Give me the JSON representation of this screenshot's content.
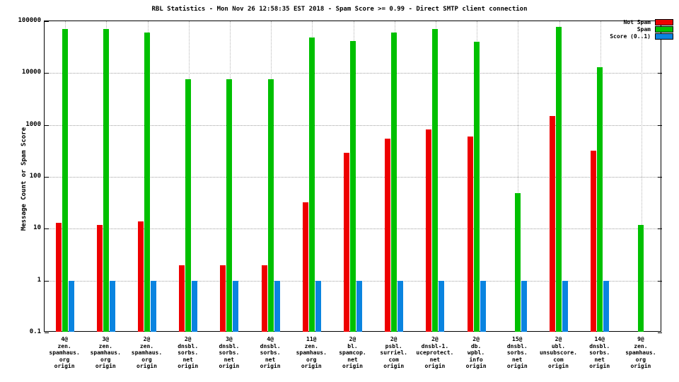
{
  "chart_data": {
    "type": "bar",
    "scale": "log",
    "title": "RBL Statistics - Mon Nov 26 12:58:35 EST 2018 - Spam Score >= 0.99 - Direct SMTP client connection",
    "ylabel": "Message Count or Spam Score",
    "ylim": [
      0.1,
      100000
    ],
    "y_ticks": [
      "0.1",
      "1",
      "10",
      "100",
      "1000",
      "10000",
      "100000"
    ],
    "y_tick_values": [
      0.1,
      1,
      10,
      100,
      1000,
      10000,
      100000
    ],
    "grid": true,
    "legend_position": "top-right",
    "categories": [
      [
        "4@",
        "zen.",
        "spamhaus.",
        "org",
        "origin"
      ],
      [
        "3@",
        "zen.",
        "spamhaus.",
        "org",
        "origin"
      ],
      [
        "2@",
        "zen.",
        "spamhaus.",
        "org",
        "origin"
      ],
      [
        "2@",
        "dnsbl.",
        "sorbs.",
        "net",
        "origin"
      ],
      [
        "3@",
        "dnsbl.",
        "sorbs.",
        "net",
        "origin"
      ],
      [
        "4@",
        "dnsbl.",
        "sorbs.",
        "net",
        "origin"
      ],
      [
        "11@",
        "zen.",
        "spamhaus.",
        "org",
        "origin"
      ],
      [
        "2@",
        "bl.",
        "spamcop.",
        "net",
        "origin"
      ],
      [
        "2@",
        "psbl.",
        "surriel.",
        "com",
        "origin"
      ],
      [
        "2@",
        "dnsbl-1.",
        "uceprotect.",
        "net",
        "origin"
      ],
      [
        "2@",
        "db.",
        "wpbl.",
        "info",
        "origin"
      ],
      [
        "15@",
        "dnsbl.",
        "sorbs.",
        "net",
        "origin"
      ],
      [
        "2@",
        "ubl.",
        "unsubscore.",
        "com",
        "origin"
      ],
      [
        "14@",
        "dnsbl.",
        "sorbs.",
        "net",
        "origin"
      ],
      [
        "9@",
        "zen.",
        "spamhaus.",
        "org",
        "origin"
      ]
    ],
    "series": [
      {
        "name": "Not Spam",
        "color": "#ee0000",
        "values": [
          13,
          12,
          14,
          2,
          2,
          2,
          32,
          290,
          550,
          830,
          590,
          null,
          1500,
          320,
          null
        ]
      },
      {
        "name": "Spam",
        "color": "#00c000",
        "values": [
          70000,
          70000,
          60000,
          7500,
          7500,
          7500,
          48000,
          42000,
          60000,
          70000,
          40000,
          48,
          78000,
          13000,
          12
        ]
      },
      {
        "name": "Score (0..1)",
        "color": "#0a84e0",
        "values": [
          1,
          1,
          1,
          1,
          1,
          1,
          1,
          1,
          1,
          1,
          1,
          1,
          1,
          1,
          null
        ]
      }
    ]
  }
}
